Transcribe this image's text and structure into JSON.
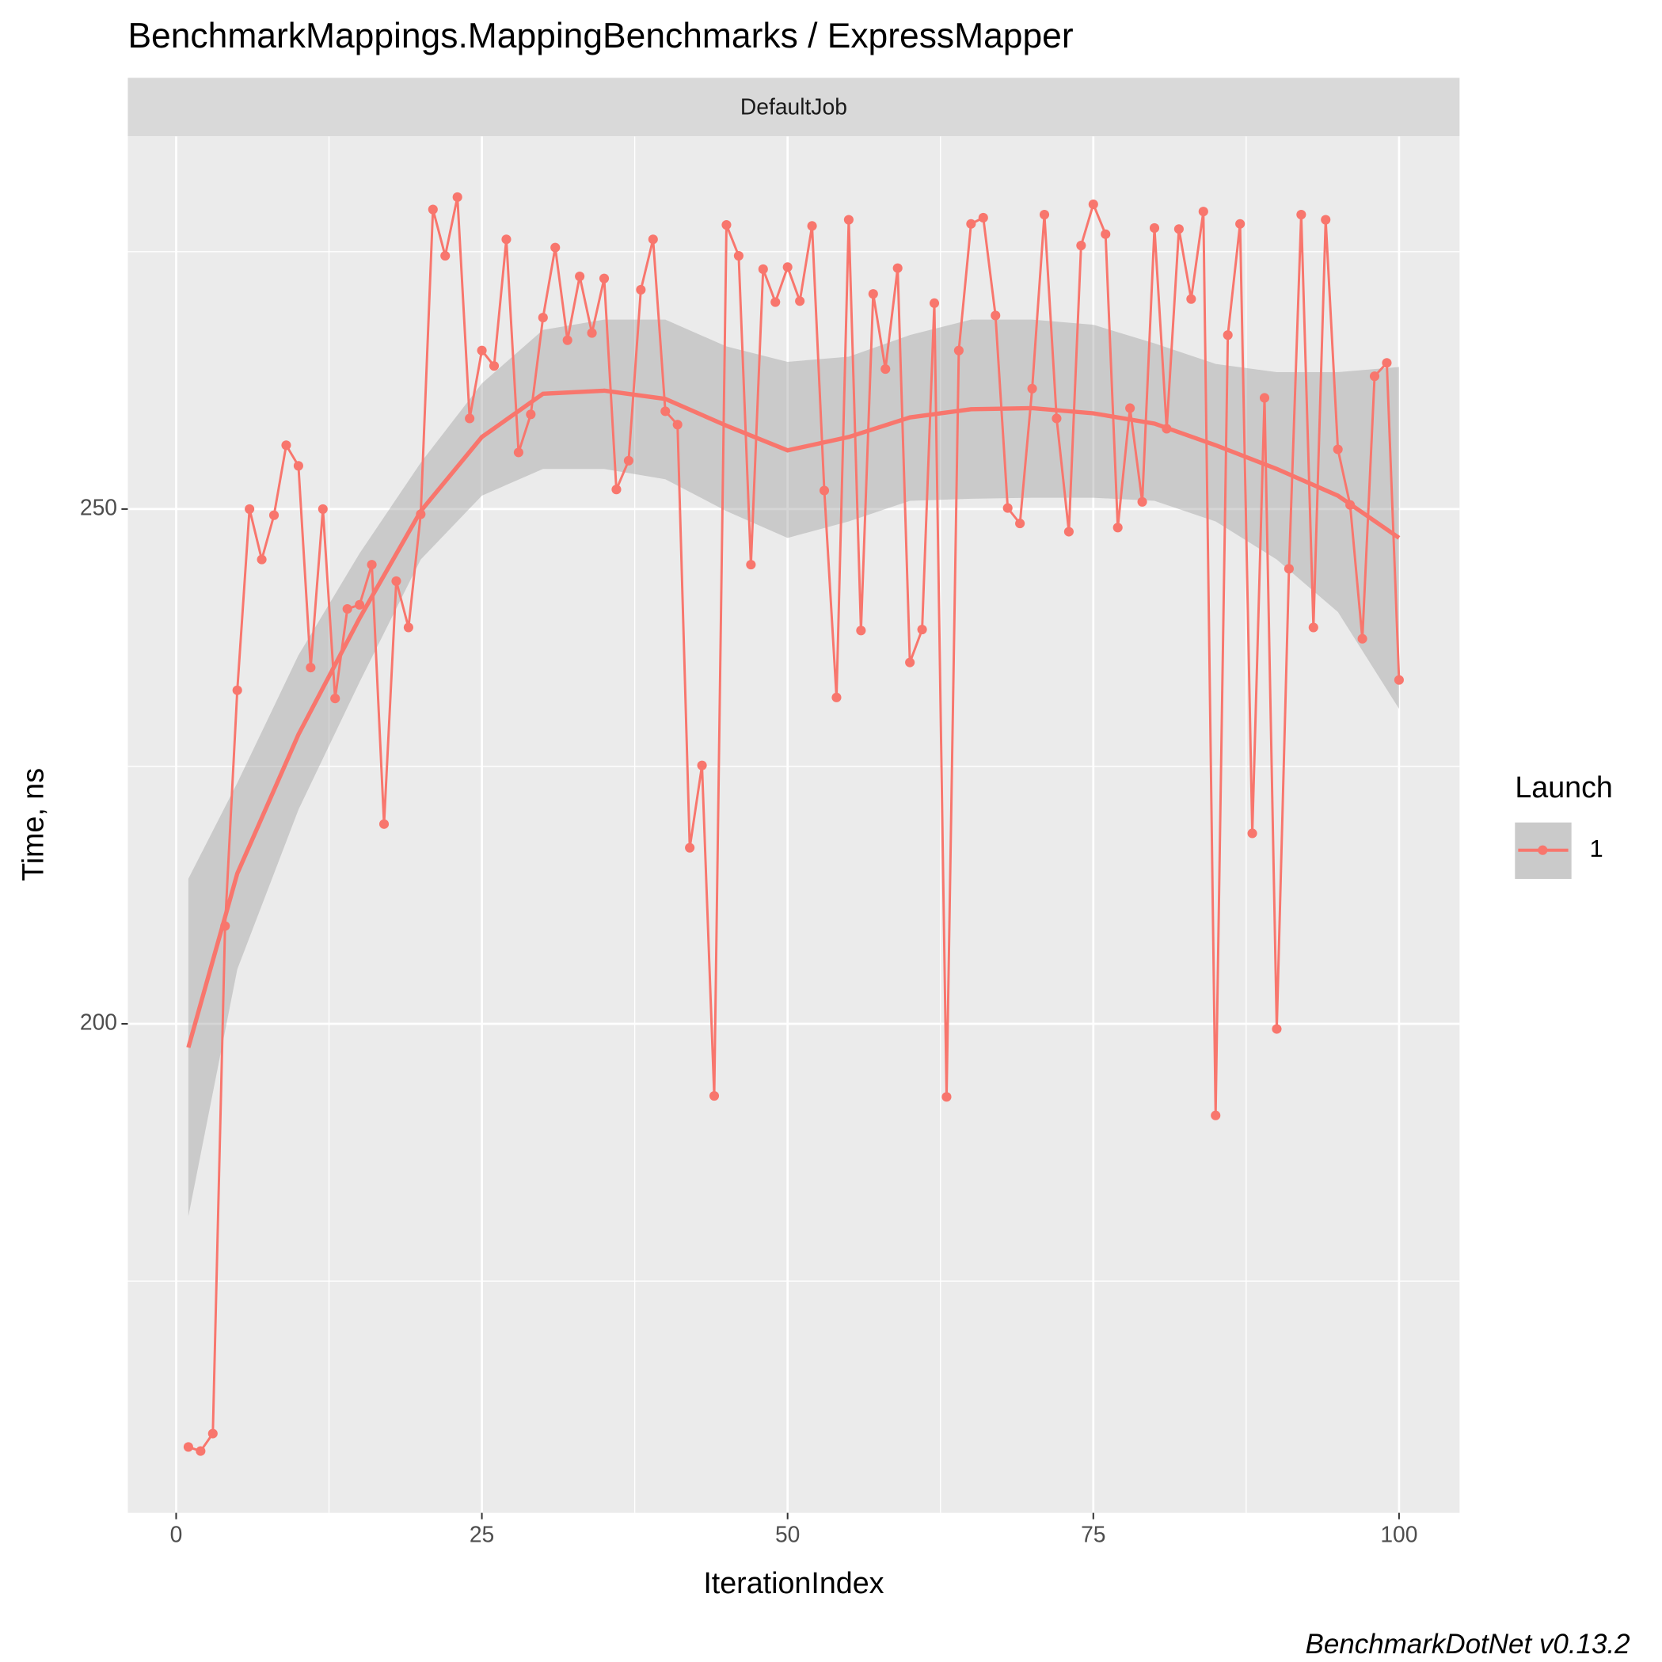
{
  "chart_data": {
    "type": "line",
    "title": "BenchmarkMappings.MappingBenchmarks / ExpressMapper",
    "facet_label": "DefaultJob",
    "x_label": "IterationIndex",
    "y_label": "Time, ns",
    "caption": "BenchmarkDotNet v0.13.2",
    "legend_title": "Launch",
    "legend_position": "right",
    "x": [
      1,
      2,
      3,
      4,
      5,
      6,
      7,
      8,
      9,
      10,
      11,
      12,
      13,
      14,
      15,
      16,
      17,
      18,
      19,
      20,
      21,
      22,
      23,
      24,
      25,
      26,
      27,
      28,
      29,
      30,
      31,
      32,
      33,
      34,
      35,
      36,
      37,
      38,
      39,
      40,
      41,
      42,
      43,
      44,
      45,
      46,
      47,
      48,
      49,
      50,
      51,
      52,
      53,
      54,
      55,
      56,
      57,
      58,
      59,
      60,
      61,
      62,
      63,
      64,
      65,
      66,
      67,
      68,
      69,
      70,
      71,
      72,
      73,
      74,
      75,
      76,
      77,
      78,
      79,
      80,
      81,
      82,
      83,
      84,
      85,
      86,
      87,
      88,
      89,
      90,
      91,
      92,
      93,
      94,
      95,
      96,
      97,
      98,
      99,
      100
    ],
    "series": [
      {
        "name": "1",
        "color": "#F8766D",
        "values": [
          158.9,
          158.5,
          160.2,
          209.5,
          232.4,
          250,
          245.1,
          249.4,
          256.2,
          254.2,
          234.6,
          250,
          231.6,
          240.3,
          240.7,
          244.6,
          219.4,
          243.0,
          238.5,
          249.5,
          279.1,
          274.6,
          280.3,
          258.8,
          265.4,
          263.9,
          276.2,
          255.5,
          259.2,
          268.6,
          275.4,
          266.4,
          272.6,
          267.1,
          272.4,
          251.9,
          254.7,
          271.3,
          276.2,
          259.5,
          258.2,
          217.1,
          225.1,
          193.0,
          277.6,
          274.6,
          244.6,
          273.3,
          270.1,
          273.5,
          270.2,
          277.5,
          251.8,
          231.7,
          278.1,
          238.2,
          270.9,
          263.6,
          273.4,
          235.1,
          238.3,
          270.0,
          192.9,
          265.4,
          277.7,
          278.3,
          268.8,
          250.1,
          248.6,
          261.7,
          278.6,
          258.8,
          247.8,
          275.6,
          279.6,
          276.7,
          248.2,
          259.8,
          250.7,
          277.3,
          257.8,
          277.2,
          270.4,
          278.9,
          191.1,
          266.9,
          277.7,
          218.5,
          260.8,
          199.5,
          244.2,
          278.6,
          238.5,
          278.1,
          255.8,
          250.4,
          237.4,
          262.9,
          264.2,
          233.4
        ]
      }
    ],
    "smooth": {
      "color": "#F8766D",
      "band_color": "#999999",
      "x": [
        1,
        5,
        10,
        15,
        20,
        25,
        30,
        35,
        40,
        45,
        50,
        55,
        60,
        65,
        70,
        75,
        80,
        85,
        90,
        95,
        100
      ],
      "values": [
        197.7,
        214.6,
        228.1,
        239.4,
        249.8,
        257.0,
        261.2,
        261.5,
        260.7,
        258.1,
        255.7,
        257.0,
        258.9,
        259.7,
        259.8,
        259.3,
        258.3,
        256.2,
        253.9,
        251.3,
        247.2
      ],
      "upper": [
        214.1,
        223.4,
        235.8,
        245.7,
        254.5,
        262.2,
        267.4,
        268.4,
        268.4,
        265.8,
        264.3,
        264.8,
        266.9,
        268.4,
        268.4,
        267.9,
        266.1,
        264.1,
        263.3,
        263.3,
        263.8
      ],
      "lower": [
        181.3,
        205.3,
        220.8,
        233.2,
        245.1,
        251.3,
        253.9,
        253.9,
        252.9,
        249.8,
        247.2,
        248.8,
        250.8,
        251.0,
        251.1,
        251.1,
        250.8,
        248.8,
        245.1,
        240.0,
        230.6
      ]
    },
    "xlim": [
      -3.95,
      104.95
    ],
    "ylim": [
      152.5,
      286.2
    ],
    "xticks": [
      0,
      25,
      50,
      75,
      100
    ],
    "yticks": [
      200,
      250
    ],
    "x_minor_grid": [
      12.5,
      37.5,
      62.5,
      87.5
    ],
    "y_minor_grid": [
      175,
      225,
      275
    ],
    "grid": true
  }
}
